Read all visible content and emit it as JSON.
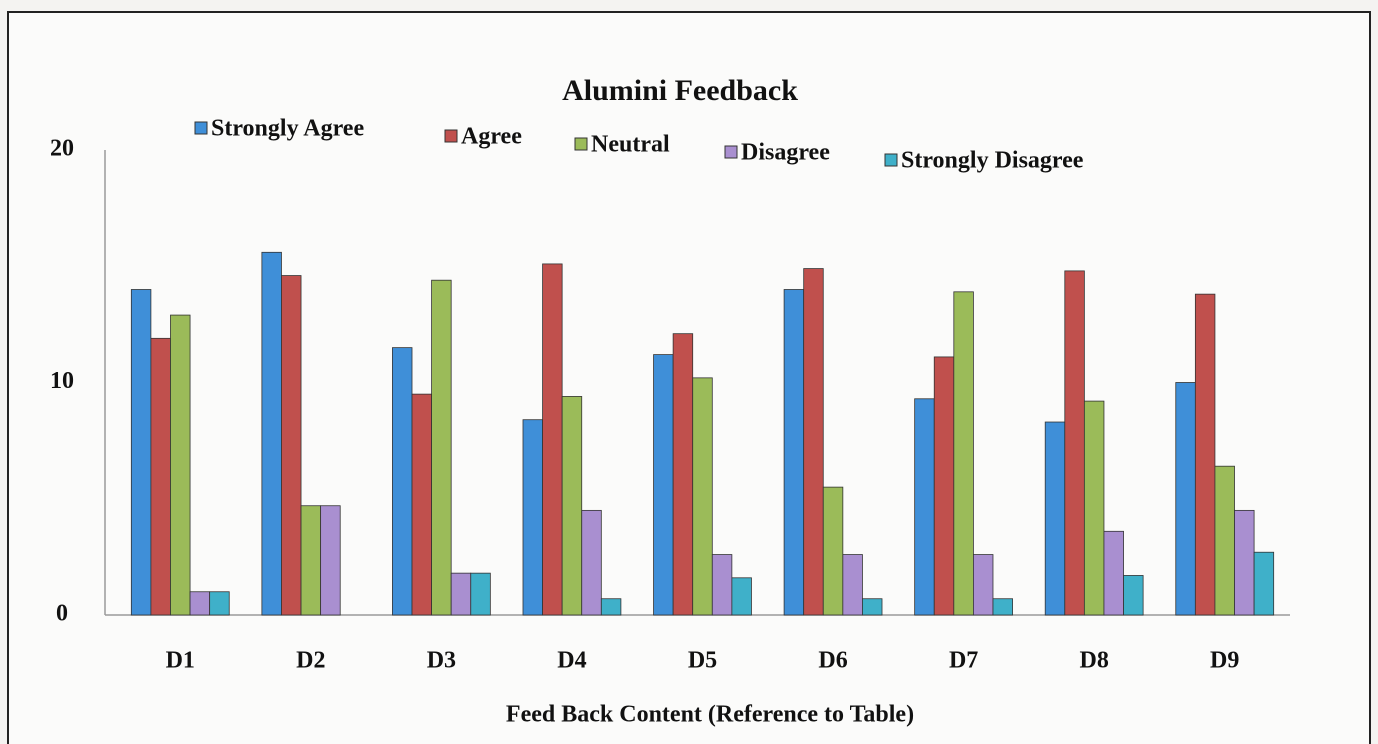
{
  "chart_data": {
    "type": "bar",
    "title": "Alumini Feedback",
    "x_label": "Feed Back Content (Reference to Table)",
    "categories": [
      "D1",
      "D2",
      "D3",
      "D4",
      "D5",
      "D6",
      "D7",
      "D8",
      "D9"
    ],
    "series": [
      {
        "name": "Strongly Agree",
        "color": "#3f8fd8",
        "values": [
          14,
          15.6,
          11.5,
          8.4,
          11.2,
          14,
          9.3,
          8.3,
          10
        ]
      },
      {
        "name": "Agree",
        "color": "#c0504d",
        "values": [
          11.9,
          14.6,
          9.5,
          15.1,
          12.1,
          14.9,
          11.1,
          14.8,
          13.8
        ]
      },
      {
        "name": "Neutral",
        "color": "#9bbb59",
        "values": [
          12.9,
          4.7,
          14.4,
          9.4,
          10.2,
          5.5,
          13.9,
          9.2,
          6.4
        ]
      },
      {
        "name": "Disagree",
        "color": "#a98fd0",
        "values": [
          1,
          4.7,
          1.8,
          4.5,
          2.6,
          2.6,
          2.6,
          3.6,
          4.5
        ]
      },
      {
        "name": "Strongly Disagree",
        "color": "#3fb0c9",
        "values": [
          1,
          0,
          1.8,
          0.7,
          1.6,
          0.7,
          0.7,
          1.7,
          2.7
        ]
      }
    ],
    "ylim": [
      0,
      20
    ],
    "yticks": [
      0,
      10,
      20
    ],
    "grid": false
  }
}
